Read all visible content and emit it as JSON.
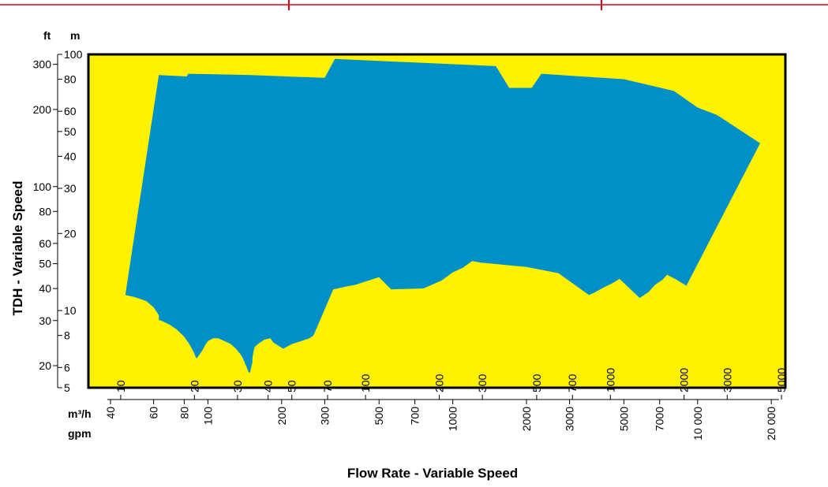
{
  "chart_data": {
    "type": "area",
    "xlabel": "Flow Rate - Variable Speed",
    "ylabel": "TDH - Variable Speed",
    "scale": "log-log",
    "colors": {
      "plot_background": "#FFF200",
      "coverage_fill": "#0090C8",
      "plot_border": "#000000",
      "header_rule": "#E2001A"
    },
    "y_axis": {
      "units": [
        "ft",
        "m"
      ],
      "ylim_m": [
        5,
        100
      ],
      "ft_ticks": [
        "300",
        "200",
        "100",
        "80",
        "60",
        "50",
        "40",
        "30",
        "20"
      ],
      "m_ticks": [
        "100",
        "80",
        "60",
        "50",
        "40",
        "30",
        "20",
        "10",
        "8",
        "6",
        "5"
      ]
    },
    "x_axis": {
      "units": [
        "m³/h",
        "gpm"
      ],
      "xlim_gpm": [
        40,
        22000
      ],
      "m3h_ticks": [
        "10",
        "20",
        "30",
        "40",
        "50",
        "70",
        "100",
        "200",
        "300",
        "500",
        "700",
        "1000",
        "2000",
        "3000",
        "5000"
      ],
      "gpm_ticks": [
        "40",
        "60",
        "80",
        "100",
        "200",
        "300",
        "500",
        "700",
        "1000",
        "2000",
        "3000",
        "5000",
        "7000",
        "10 000",
        "20 000"
      ]
    },
    "coverage_envelope": {
      "units": {
        "x": "gpm",
        "y": "m"
      },
      "points": [
        [
          46,
          11.5
        ],
        [
          63,
          83
        ],
        [
          82,
          82
        ],
        [
          83,
          84
        ],
        [
          150,
          83
        ],
        [
          300,
          81
        ],
        [
          330,
          96
        ],
        [
          1500,
          90
        ],
        [
          1700,
          74
        ],
        [
          2100,
          74
        ],
        [
          2300,
          84
        ],
        [
          5000,
          80
        ],
        [
          8000,
          72
        ],
        [
          10000,
          62
        ],
        [
          12000,
          58
        ],
        [
          18000,
          45
        ],
        [
          9000,
          12.5
        ],
        [
          8200,
          13.2
        ],
        [
          7500,
          13.8
        ],
        [
          7200,
          13.2
        ],
        [
          6700,
          12.6
        ],
        [
          6300,
          11.8
        ],
        [
          5800,
          11.2
        ],
        [
          4800,
          13.3
        ],
        [
          4500,
          12.8
        ],
        [
          4200,
          12.4
        ],
        [
          4000,
          12.1
        ],
        [
          3750,
          11.7
        ],
        [
          3600,
          11.5
        ],
        [
          2700,
          14.0
        ],
        [
          2000,
          14.8
        ],
        [
          1300,
          15.4
        ],
        [
          1200,
          15.6
        ],
        [
          1100,
          14.7
        ],
        [
          1000,
          14.1
        ],
        [
          900,
          13.1
        ],
        [
          760,
          12.2
        ],
        [
          560,
          12.1
        ],
        [
          500,
          13.5
        ],
        [
          420,
          12.8
        ],
        [
          400,
          12.6
        ],
        [
          380,
          12.5
        ],
        [
          325,
          12.1
        ],
        [
          270,
          8.0
        ],
        [
          260,
          7.8
        ],
        [
          240,
          7.6
        ],
        [
          220,
          7.4
        ],
        [
          203,
          7.1
        ],
        [
          185,
          7.5
        ],
        [
          180,
          7.8
        ],
        [
          170,
          7.7
        ],
        [
          160,
          7.4
        ],
        [
          155,
          7.2
        ],
        [
          153,
          6.8
        ],
        [
          152,
          6.5
        ],
        [
          152,
          6.3
        ],
        [
          149,
          5.8
        ],
        [
          148,
          5.7
        ],
        [
          146,
          5.8
        ],
        [
          144,
          6.0
        ],
        [
          141,
          6.3
        ],
        [
          138,
          6.6
        ],
        [
          135,
          6.8
        ],
        [
          130,
          7.1
        ],
        [
          124,
          7.4
        ],
        [
          117,
          7.6
        ],
        [
          110,
          7.8
        ],
        [
          105,
          7.8
        ],
        [
          100,
          7.6
        ],
        [
          98,
          7.4
        ],
        [
          95,
          7.0
        ],
        [
          93,
          6.8
        ],
        [
          91,
          6.6
        ],
        [
          90,
          6.5
        ],
        [
          89,
          6.6
        ],
        [
          88,
          6.8
        ],
        [
          86,
          7.1
        ],
        [
          84,
          7.4
        ],
        [
          80,
          7.9
        ],
        [
          75,
          8.4
        ],
        [
          70,
          8.8
        ],
        [
          65,
          9.1
        ],
        [
          63,
          9.2
        ],
        [
          63,
          9.6
        ],
        [
          60,
          10.3
        ],
        [
          56,
          10.9
        ],
        [
          50,
          11.3
        ],
        [
          46,
          11.5
        ]
      ]
    }
  }
}
